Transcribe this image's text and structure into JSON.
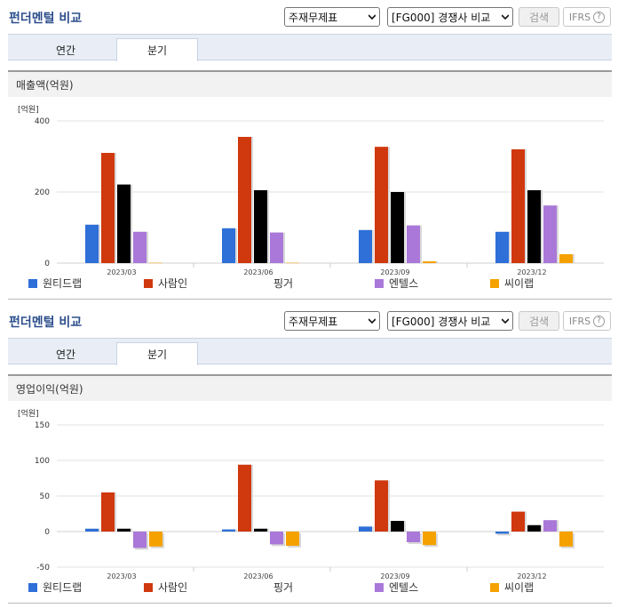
{
  "panels": [
    {
      "title": "펀더멘털 비교",
      "select1": "주재무제표",
      "select2": "[FG000] 경쟁사 비교",
      "search_btn": "검색",
      "ifrs": "IFRS",
      "help": "?",
      "tabs": [
        "연간",
        "분기"
      ],
      "active_tab": "분기",
      "section": "매출액(억원)"
    },
    {
      "title": "펀더멘털 비교",
      "select1": "주재무제표",
      "select2": "[FG000] 경쟁사 비교",
      "search_btn": "검색",
      "ifrs": "IFRS",
      "help": "?",
      "tabs": [
        "연간",
        "분기"
      ],
      "active_tab": "분기",
      "section": "영업이익(억원)"
    }
  ],
  "colors": {
    "원티드랩": "#2e6fd8",
    "사람인": "#d0380e",
    "링거": "#86c22a",
    "엔텔스": "#a978d8",
    "씨이랩": "#f5a100"
  },
  "chart_data": [
    {
      "type": "bar",
      "unit": "[억원]",
      "categories": [
        "2023/03",
        "2023/06",
        "2023/09",
        "2023/12"
      ],
      "ylim": [
        0,
        400
      ],
      "yticks": [
        0,
        200,
        400
      ],
      "grid": true,
      "legend": "bottom",
      "series": [
        {
          "name": "원티드랩",
          "values": [
            108,
            98,
            93,
            88
          ]
        },
        {
          "name": "사람인",
          "values": [
            310,
            355,
            327,
            320
          ]
        },
        {
          "name": "핑거",
          "values": [
            221,
            205,
            200,
            205
          ]
        },
        {
          "name": "엔텔스",
          "values": [
            88,
            86,
            106,
            162
          ]
        },
        {
          "name": "씨이랩",
          "values": [
            1,
            1,
            5,
            25
          ]
        }
      ]
    },
    {
      "type": "bar",
      "unit": "[억원]",
      "categories": [
        "2023/03",
        "2023/06",
        "2023/09",
        "2023/12"
      ],
      "ylim": [
        -50,
        150
      ],
      "yticks": [
        -50,
        0,
        50,
        100,
        150
      ],
      "grid": true,
      "legend": "bottom",
      "series": [
        {
          "name": "원티드랩",
          "values": [
            4,
            3,
            7,
            -3
          ]
        },
        {
          "name": "사람인",
          "values": [
            55,
            94,
            72,
            28
          ]
        },
        {
          "name": "핑거",
          "values": [
            4,
            4,
            15,
            9
          ]
        },
        {
          "name": "엔텔스",
          "values": [
            -23,
            -18,
            -15,
            16
          ]
        },
        {
          "name": "씨이랩",
          "values": [
            -21,
            -20,
            -19,
            -21
          ]
        }
      ]
    }
  ]
}
